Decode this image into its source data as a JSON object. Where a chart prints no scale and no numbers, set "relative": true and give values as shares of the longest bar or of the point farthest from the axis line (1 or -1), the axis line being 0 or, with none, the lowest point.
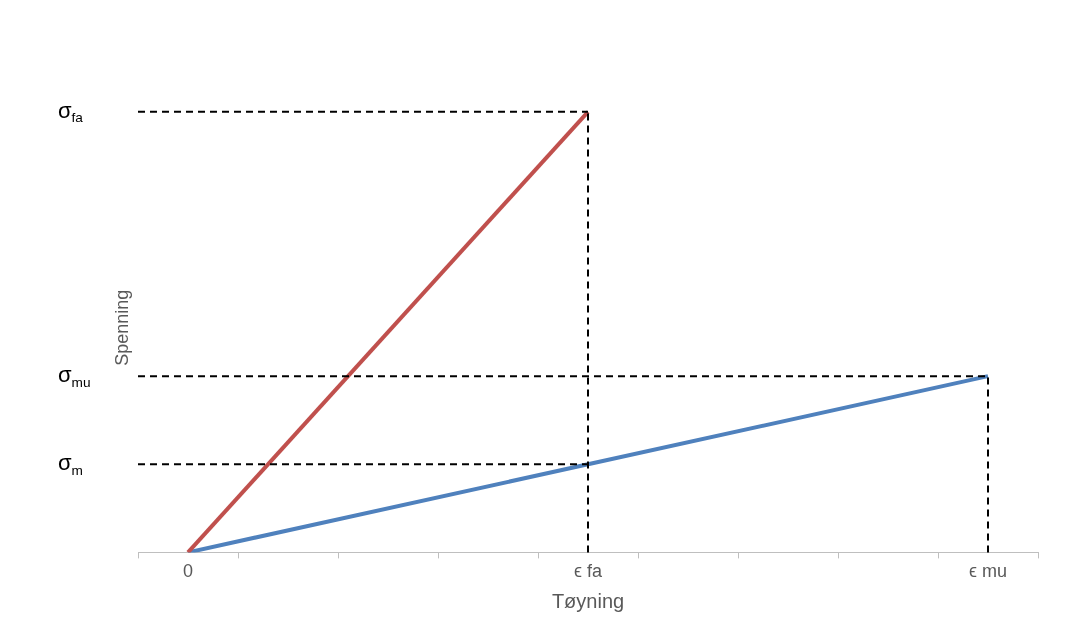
{
  "chart_data": {
    "type": "line",
    "relative": true,
    "xlabel": "Tøyning",
    "ylabel": "Spenning",
    "categories": [
      "0",
      null,
      null,
      null,
      "ϵ fa",
      null,
      null,
      null,
      "ϵ mu"
    ],
    "series": [
      {
        "color": "#c0504d",
        "values": [
          0,
          null,
          null,
          null,
          1,
          null,
          null,
          null,
          null
        ]
      },
      {
        "color": "#4f81bd",
        "values": [
          0,
          null,
          null,
          null,
          0.2,
          null,
          null,
          null,
          0.4
        ]
      }
    ],
    "ref_lines": [
      {
        "axis": "y",
        "value": 1,
        "label": "σ$_{fa}$",
        "color": "#000000",
        "line_style": "dashed"
      },
      {
        "axis": "y",
        "value": 0.4,
        "label": "σ$_{mu}$",
        "color": "#000000",
        "line_style": "dashed"
      },
      {
        "axis": "y",
        "value": 0.2,
        "label": "σ$_{m}$",
        "color": "#000000",
        "line_style": "dashed"
      },
      {
        "axis": "x",
        "value": "ϵ fa",
        "color": "#000000",
        "line_style": "dashed"
      },
      {
        "axis": "x",
        "value": "ϵ mu",
        "color": "#000000",
        "line_style": "dashed"
      }
    ],
    "grid": false,
    "legend": false,
    "marker": "none",
    "line_style": "solid"
  }
}
